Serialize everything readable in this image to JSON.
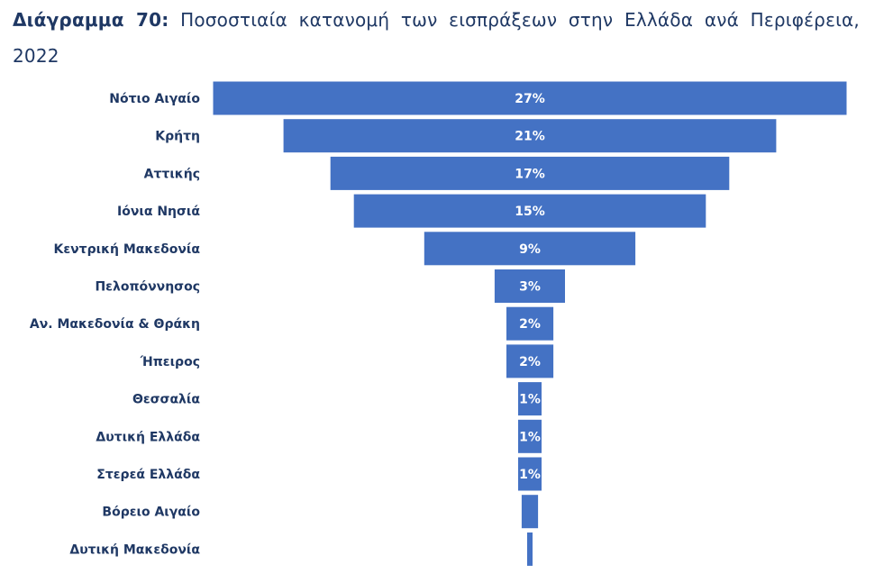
{
  "title": {
    "prefix": "Διάγραμμα 70:",
    "text": "Ποσοστιαία κατανομή των εισπράξεων στην Ελλάδα ανά Περιφέρεια, 2022"
  },
  "colors": {
    "bar": "#4472c4",
    "bar_label": "#ffffff",
    "category_label": "#1f3864",
    "title": "#1f3864"
  },
  "chart_data": {
    "type": "bar",
    "orientation": "horizontal-centered (funnel)",
    "categories": [
      "Νότιο Αιγαίο",
      "Κρήτη",
      "Αττικής",
      "Ιόνια Νησιά",
      "Κεντρική Μακεδονία",
      "Πελοπόννησος",
      "Αν. Μακεδονία & Θράκη",
      "Ήπειρος",
      "Θεσσαλία",
      "Δυτική Ελλάδα",
      "Στερεά Ελλάδα",
      "Βόρειο Αιγαίο",
      "Δυτική Μακεδονία"
    ],
    "values": [
      27,
      21,
      17,
      15,
      9,
      3,
      2,
      2,
      1,
      1,
      1,
      0.7,
      0.2
    ],
    "data_labels": [
      "27%",
      "21%",
      "17%",
      "15%",
      "9%",
      "3%",
      "2%",
      "2%",
      "1%",
      "1%",
      "1%",
      "",
      ""
    ],
    "unit": "%",
    "legend": "none",
    "grid": false
  }
}
